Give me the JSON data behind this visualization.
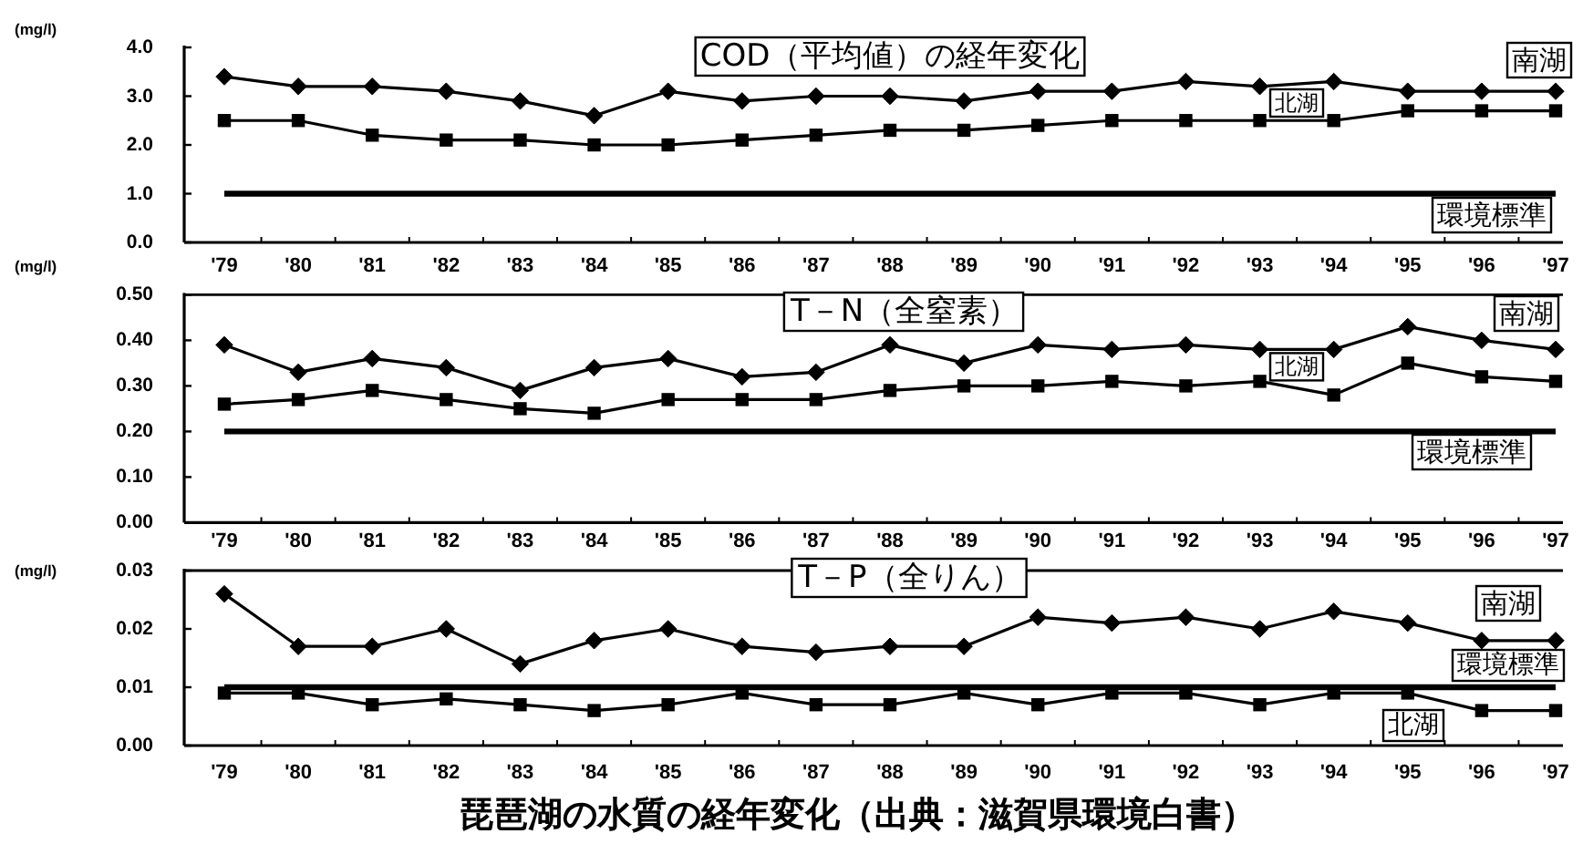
{
  "chart_data": [
    {
      "type": "line",
      "title": "COD（平均値）の経年変化",
      "ylabel": "(mg/l)",
      "categories": [
        "'79",
        "'80",
        "'81",
        "'82",
        "'83",
        "'84",
        "'85",
        "'86",
        "'87",
        "'88",
        "'89",
        "'90",
        "'91",
        "'92",
        "'93",
        "'94",
        "'95",
        "'96",
        "'97"
      ],
      "series": [
        {
          "name": "南湖",
          "color": "#000000",
          "marker": "diamond",
          "values": [
            3.4,
            3.2,
            3.2,
            3.1,
            2.9,
            2.6,
            3.1,
            2.9,
            3.0,
            3.0,
            2.9,
            3.1,
            3.1,
            3.3,
            3.2,
            3.3,
            3.1,
            3.1,
            3.1
          ]
        },
        {
          "name": "北湖",
          "color": "#000000",
          "marker": "square",
          "values": [
            2.5,
            2.5,
            2.2,
            2.1,
            2.1,
            2.0,
            2.0,
            2.1,
            2.2,
            2.3,
            2.3,
            2.4,
            2.5,
            2.5,
            2.5,
            2.5,
            2.7,
            2.7,
            2.7
          ]
        }
      ],
      "ylim": [
        0,
        4
      ],
      "yticks": [
        {
          "value": 0,
          "label": "0.0"
        },
        {
          "value": 1,
          "label": "1.0"
        },
        {
          "value": 2,
          "label": "2.0"
        },
        {
          "value": 3,
          "label": "3.0"
        },
        {
          "value": 4,
          "label": "4.0"
        }
      ],
      "ref_lines": [
        {
          "axis": "y",
          "value": 1.0,
          "label": "環境標準",
          "color": "#000000"
        }
      ]
    },
    {
      "type": "line",
      "title": "T－N（全窒素）",
      "ylabel": "(mg/l)",
      "categories": [
        "'79",
        "'80",
        "'81",
        "'82",
        "'83",
        "'84",
        "'85",
        "'86",
        "'87",
        "'88",
        "'89",
        "'90",
        "'91",
        "'92",
        "'93",
        "'94",
        "'95",
        "'96",
        "'97"
      ],
      "series": [
        {
          "name": "南湖",
          "color": "#000000",
          "marker": "diamond",
          "values": [
            0.39,
            0.33,
            0.36,
            0.34,
            0.29,
            0.34,
            0.36,
            0.32,
            0.33,
            0.39,
            0.35,
            0.39,
            0.38,
            0.39,
            0.38,
            0.38,
            0.43,
            0.4,
            0.38
          ]
        },
        {
          "name": "北湖",
          "color": "#000000",
          "marker": "square",
          "values": [
            0.26,
            0.27,
            0.29,
            0.27,
            0.25,
            0.24,
            0.27,
            0.27,
            0.27,
            0.29,
            0.3,
            0.3,
            0.31,
            0.3,
            0.31,
            0.28,
            0.35,
            0.32,
            0.31
          ]
        }
      ],
      "ylim": [
        0,
        0.5
      ],
      "yticks": [
        {
          "value": 0,
          "label": "0.00"
        },
        {
          "value": 0.1,
          "label": "0.10"
        },
        {
          "value": 0.2,
          "label": "0.20"
        },
        {
          "value": 0.3,
          "label": "0.30"
        },
        {
          "value": 0.4,
          "label": "0.40"
        },
        {
          "value": 0.5,
          "label": "0.50"
        }
      ],
      "ref_lines": [
        {
          "axis": "y",
          "value": 0.2,
          "label": "環境標準",
          "color": "#000000"
        }
      ]
    },
    {
      "type": "line",
      "title": "T－P（全りん）",
      "ylabel": "(mg/l)",
      "categories": [
        "'79",
        "'80",
        "'81",
        "'82",
        "'83",
        "'84",
        "'85",
        "'86",
        "'87",
        "'88",
        "'89",
        "'90",
        "'91",
        "'92",
        "'93",
        "'94",
        "'95",
        "'96",
        "'97"
      ],
      "series": [
        {
          "name": "南湖",
          "color": "#000000",
          "marker": "diamond",
          "values": [
            0.026,
            0.017,
            0.017,
            0.02,
            0.014,
            0.018,
            0.02,
            0.017,
            0.016,
            0.017,
            0.017,
            0.022,
            0.021,
            0.022,
            0.02,
            0.023,
            0.021,
            0.018,
            0.018
          ]
        },
        {
          "name": "北湖",
          "color": "#000000",
          "marker": "square",
          "values": [
            0.009,
            0.009,
            0.007,
            0.008,
            0.007,
            0.006,
            0.007,
            0.009,
            0.007,
            0.007,
            0.009,
            0.007,
            0.009,
            0.009,
            0.007,
            0.009,
            0.009,
            0.006,
            0.006
          ]
        }
      ],
      "ylim": [
        0,
        0.03
      ],
      "yticks": [
        {
          "value": 0,
          "label": "0.00"
        },
        {
          "value": 0.01,
          "label": "0.01"
        },
        {
          "value": 0.02,
          "label": "0.02"
        },
        {
          "value": 0.03,
          "label": "0.03"
        }
      ],
      "ref_lines": [
        {
          "axis": "y",
          "value": 0.01,
          "label": "環境標準",
          "color": "#000000"
        }
      ],
      "annotations": [
        "琵琶湖の水質の経年変化（出典：滋賀県環境白書）"
      ]
    }
  ]
}
